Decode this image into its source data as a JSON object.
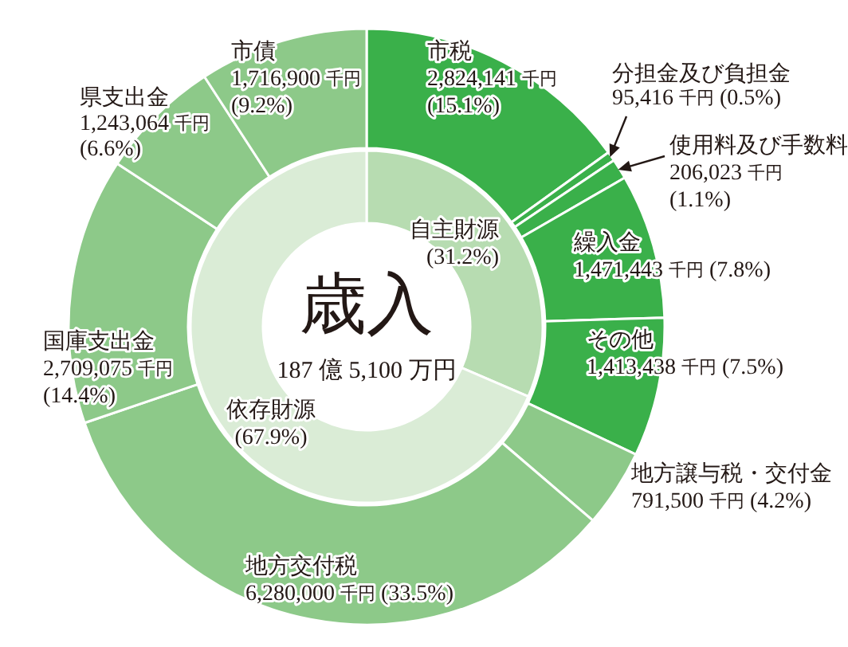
{
  "chart_data": [
    {
      "type": "donut",
      "title": "歳入",
      "annotations": [
        "187 億 5,100 万円"
      ],
      "categories": [
        "自主財源",
        "依存財源"
      ],
      "values": [
        31.2,
        67.9
      ],
      "colors": [
        "#b7dcb1",
        "#daecd6"
      ],
      "value_labels": [
        "(31.2%)",
        "(67.9%)"
      ]
    },
    {
      "type": "donut",
      "categories": [
        "市税",
        "分担金及び負担金",
        "使用料及び手数料",
        "繰入金",
        "その他",
        "地方譲与税・交付金",
        "地方交付税",
        "国庫支出金",
        "県支出金",
        "市債"
      ],
      "values": [
        2824141,
        95416,
        206023,
        1471443,
        1413438,
        791500,
        6280000,
        2709075,
        1243064,
        1716900
      ],
      "colors": [
        "#3ab04a",
        "#3ab04a",
        "#3ab04a",
        "#3ab04a",
        "#3ab04a",
        "#8dc989",
        "#8dc989",
        "#8dc989",
        "#8dc989",
        "#8dc989"
      ],
      "value_labels": [
        "2,824,141 千円 (15.1%)",
        "95,416 千円 (0.5%)",
        "206,023 千円 (1.1%)",
        "1,471,443 千円 (7.8%)",
        "1,413,438 千円 (7.5%)",
        "791,500 千円 (4.2%)",
        "6,280,000 千円 (33.5%)",
        "2,709,075 千円 (14.4%)",
        "1,243,064 千円 (6.6%)",
        "1,716,900 千円 (9.2%)"
      ]
    }
  ]
}
